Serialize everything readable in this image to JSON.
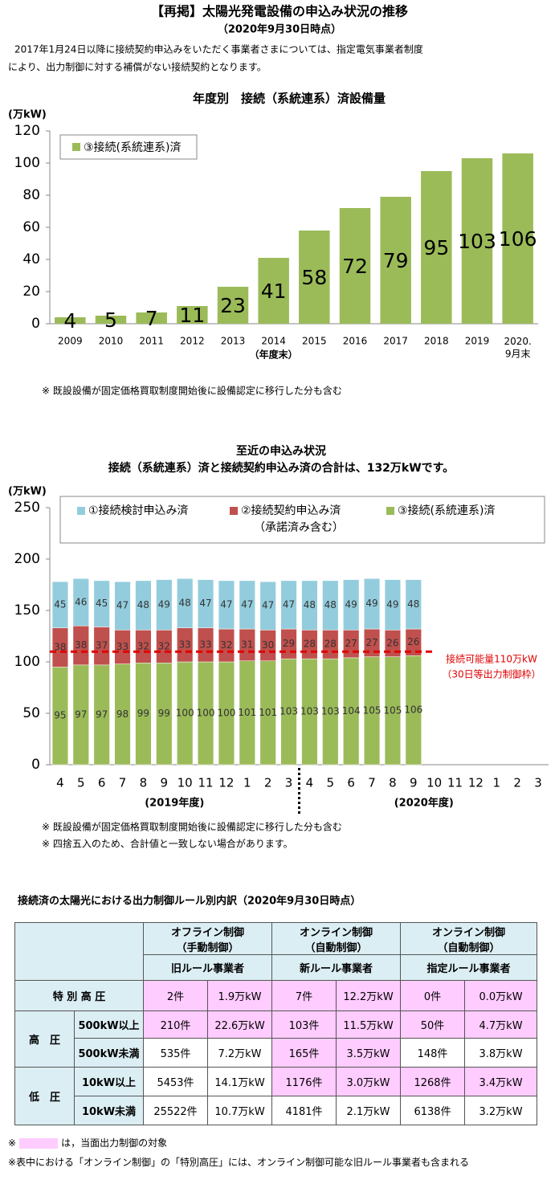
{
  "header": {
    "title": "【再掲】太陽光発電設備の申込み状況の推移",
    "subtitle": "（2020年9月30日時点）",
    "intro": [
      "2017年1月24日以降に接続契約申込みをいただく事業者さまについては、指定電気事業者制度",
      "により、出力制御に対する補償がない接続契約となります。"
    ]
  },
  "chart_data": [
    {
      "type": "bar",
      "title": "年度別　接続（系統連系）済設備量",
      "y_label": "(万kW)",
      "categories": [
        "2009",
        "2010",
        "2011",
        "2012",
        "2013",
        "2014",
        "2015",
        "2016",
        "2017",
        "2018",
        "2019",
        "2020.\n9月末"
      ],
      "x_note": "（年度末）",
      "series": [
        {
          "name": "③接続(系統連系)済",
          "color": "#9bbb59",
          "values": [
            4,
            5,
            7,
            11,
            23,
            41,
            58,
            72,
            79,
            95,
            103,
            106
          ]
        }
      ],
      "ylim": [
        0,
        120
      ],
      "yticks": [
        0,
        20,
        40,
        60,
        80,
        100,
        120
      ],
      "grid": false,
      "legend": "top-left",
      "note": "※ 既設設備が固定価格買取制度開始後に設備認定に移行した分も含む"
    },
    {
      "type": "stacked_bar",
      "title": "至近の申込み状況",
      "subtitle": "接続（系統連系）済と接続契約申込み済の合計は、132万kWです。",
      "y_label": "(万kW)",
      "categories": [
        "4",
        "5",
        "6",
        "7",
        "8",
        "9",
        "10",
        "11",
        "12",
        "1",
        "2",
        "3",
        "4",
        "5",
        "6",
        "7",
        "8",
        "9",
        "10",
        "11",
        "12",
        "1",
        "2",
        "3"
      ],
      "periods": [
        "(2019年度)",
        "(2020年度)"
      ],
      "series": [
        {
          "name": "①接続検討申込み済",
          "color": "#93cddd",
          "values": [
            45,
            46,
            45,
            47,
            48,
            49,
            48,
            47,
            47,
            47,
            47,
            47,
            48,
            48,
            49,
            49,
            49,
            48,
            null,
            null,
            null,
            null,
            null,
            null
          ]
        },
        {
          "name": "②接続契約申込み済",
          "note": "（承諾済み含む）",
          "color": "#c0504d",
          "values": [
            38,
            38,
            37,
            33,
            32,
            32,
            33,
            33,
            32,
            31,
            30,
            29,
            28,
            28,
            27,
            27,
            26,
            26,
            null,
            null,
            null,
            null,
            null,
            null
          ]
        },
        {
          "name": "③接続(系統連系)済",
          "color": "#9bbb59",
          "values": [
            95,
            97,
            97,
            98,
            99,
            99,
            100,
            100,
            100,
            101,
            101,
            103,
            103,
            103,
            104,
            105,
            105,
            106,
            null,
            null,
            null,
            null,
            null,
            null
          ]
        }
      ],
      "reference_line": {
        "value": 110,
        "label": "接続可能量110万kW",
        "sublabel": "（30日等出力制御枠）",
        "color": "#e00000"
      },
      "ylim": [
        0,
        250
      ],
      "yticks": [
        0,
        50,
        100,
        150,
        200,
        250
      ],
      "grid": false,
      "legend": "top",
      "notes": [
        "※ 既設設備が固定価格買取制度開始後に設備認定に移行した分も含む",
        "※ 四捨五入のため、合計値と一致しない場合があります。"
      ]
    }
  ],
  "table": {
    "title": "接続済の太陽光における出力制御ルール別内訳（2020年9月30日時点）",
    "header": [
      {
        "control": "オフライン制御",
        "mode": "（手動制御）",
        "group": "旧ルール事業者"
      },
      {
        "control": "オンライン制御",
        "mode": "（自動制御）",
        "group": "新ルール事業者"
      },
      {
        "control": "オンライン制御",
        "mode": "（自動制御）",
        "group": "指定ルール事業者"
      }
    ],
    "rows": [
      {
        "label": "特 別 高 圧",
        "cells": [
          "2件",
          "1.9万kW",
          "7件",
          "12.2万kW",
          "0件",
          "0.0万kW"
        ],
        "highlight": [
          true,
          true,
          true,
          true,
          true,
          true
        ]
      },
      {
        "group": "高　圧",
        "label": "500kW以上",
        "cells": [
          "210件",
          "22.6万kW",
          "103件",
          "11.5万kW",
          "50件",
          "4.7万kW"
        ],
        "highlight": [
          true,
          true,
          true,
          true,
          true,
          true
        ]
      },
      {
        "label": "500kW未満",
        "cells": [
          "535件",
          "7.2万kW",
          "165件",
          "3.5万kW",
          "148件",
          "3.8万kW"
        ],
        "highlight": [
          false,
          false,
          true,
          true,
          false,
          false
        ]
      },
      {
        "group": "低　圧",
        "label": "10kW以上",
        "cells": [
          "5453件",
          "14.1万kW",
          "1176件",
          "3.0万kW",
          "1268件",
          "3.4万kW"
        ],
        "highlight": [
          false,
          false,
          true,
          true,
          true,
          true
        ]
      },
      {
        "label": "10kW未満",
        "cells": [
          "25522件",
          "10.7万kW",
          "4181件",
          "2.1万kW",
          "6138件",
          "3.2万kW"
        ],
        "highlight": [
          false,
          false,
          false,
          false,
          false,
          false
        ]
      }
    ],
    "legend_note": {
      "mark": "※",
      "text": "は，当面出力制御の対象"
    },
    "footnote": "※表中における「オンライン制御」の「特別高圧」には、オンライン制御可能な旧ルール事業者も含まれる"
  }
}
